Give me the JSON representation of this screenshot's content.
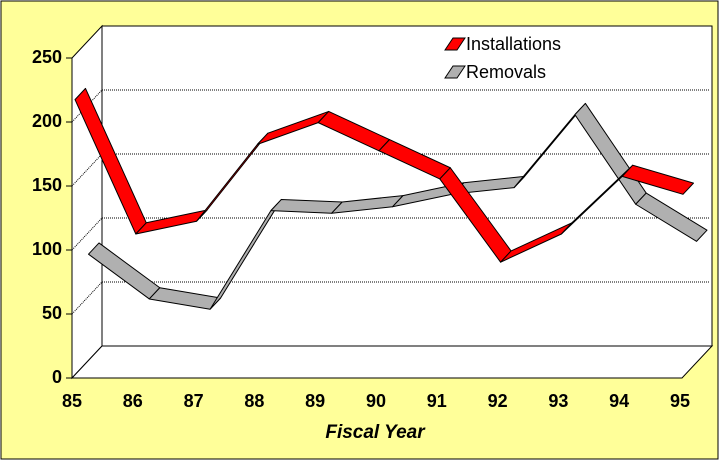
{
  "chart_data": {
    "type": "line3d",
    "x_label": "Fiscal Year",
    "categories": [
      "85",
      "86",
      "87",
      "88",
      "89",
      "90",
      "91",
      "92",
      "93",
      "94",
      "95"
    ],
    "series": [
      {
        "name": "Installations",
        "color": "#ff0000",
        "values": [
          215,
          110,
          120,
          180,
          197,
          175,
          153,
          88,
          110,
          155,
          141
        ]
      },
      {
        "name": "Removals",
        "color": "#b0b0b0",
        "values": [
          83,
          48,
          40,
          117,
          115,
          120,
          130,
          135,
          192,
          122,
          93
        ]
      }
    ],
    "ylim": [
      0,
      250
    ],
    "yticks": [
      0,
      50,
      100,
      150,
      200,
      250
    ],
    "grid": true
  }
}
